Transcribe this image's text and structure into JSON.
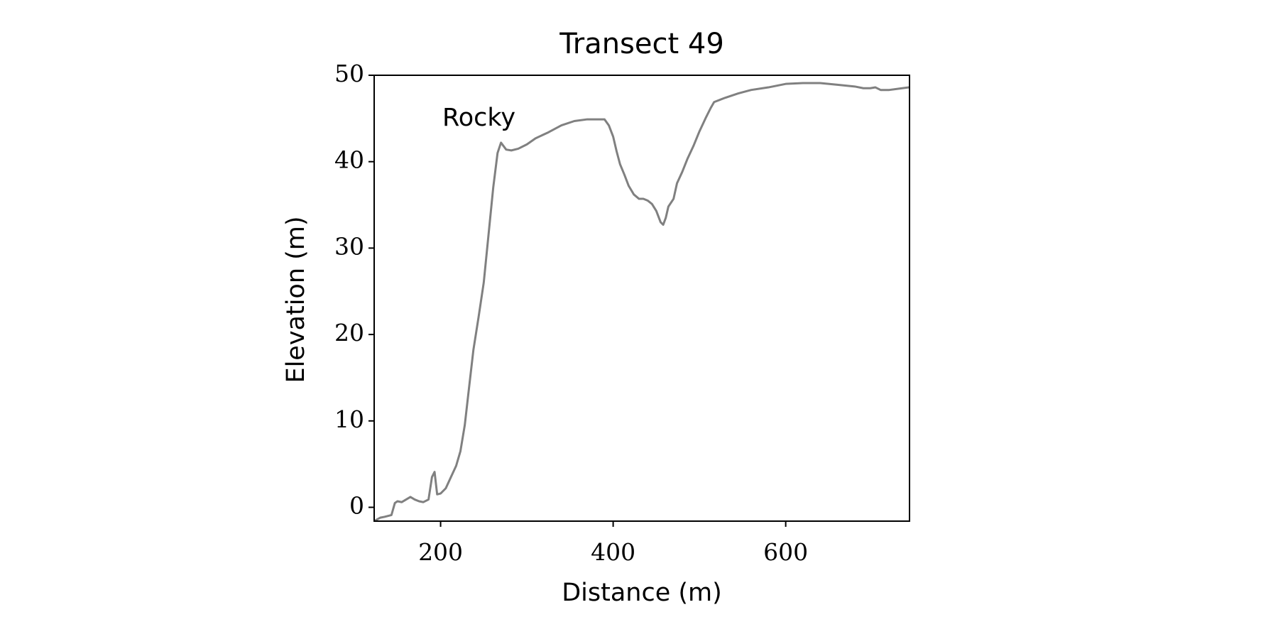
{
  "chart_data": {
    "type": "line",
    "title": "Transect 49",
    "x_label": "Distance (m)",
    "y_label": "Elevation (m)",
    "annotations": [
      "Rocky"
    ],
    "x": [
      123,
      130,
      135,
      143,
      147,
      150,
      155,
      160,
      165,
      170,
      175,
      180,
      186,
      190,
      193,
      196,
      200,
      206,
      212,
      218,
      223,
      228,
      232,
      238,
      244,
      250,
      255,
      261,
      266,
      270,
      273,
      276,
      282,
      290,
      300,
      310,
      325,
      340,
      355,
      370,
      385,
      390,
      395,
      400,
      404,
      408,
      413,
      418,
      424,
      430,
      435,
      440,
      445,
      450,
      455,
      458,
      461,
      464,
      470,
      474,
      480,
      486,
      493,
      500,
      507,
      513,
      517,
      530,
      545,
      560,
      580,
      600,
      620,
      640,
      660,
      680,
      690,
      698,
      704,
      710,
      720,
      735,
      743
    ],
    "values": [
      -1.6,
      -1.2,
      -1.1,
      -0.9,
      0.5,
      0.7,
      0.6,
      0.9,
      1.2,
      0.9,
      0.7,
      0.6,
      0.9,
      3.5,
      4.1,
      1.5,
      1.6,
      2.2,
      3.5,
      4.8,
      6.5,
      9.5,
      13,
      18.2,
      22,
      26,
      31,
      37,
      41,
      42.2,
      41.8,
      41.4,
      41.3,
      41.5,
      42,
      42.7,
      43.4,
      44.2,
      44.7,
      44.9,
      44.9,
      44.9,
      44.2,
      42.9,
      41.2,
      39.7,
      38.5,
      37.2,
      36.2,
      35.7,
      35.7,
      35.5,
      35.1,
      34.3,
      33,
      32.7,
      33.5,
      34.8,
      35.7,
      37.5,
      38.8,
      40.3,
      41.8,
      43.5,
      45,
      46.2,
      46.9,
      47.4,
      47.9,
      48.3,
      48.6,
      49,
      49.1,
      49.1,
      48.9,
      48.7,
      48.5,
      48.5,
      48.6,
      48.3,
      48.3,
      48.5,
      48.6
    ],
    "color": "#808080",
    "xlim": [
      123,
      743.5
    ],
    "ylim": [
      -1.6,
      50
    ],
    "xticks": [
      200,
      400,
      600
    ],
    "yticks": [
      0,
      10,
      20,
      30,
      40,
      50
    ],
    "grid": false
  }
}
